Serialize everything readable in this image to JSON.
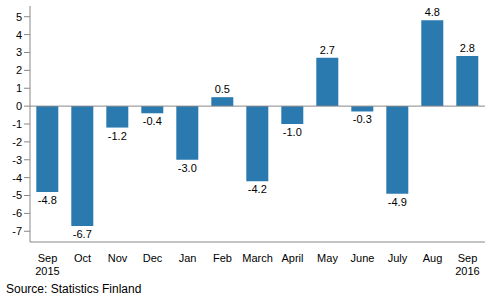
{
  "chart_data": {
    "type": "bar",
    "source": "Source: Statistics Finland",
    "categories": [
      "Sep 2015",
      "Oct",
      "Nov",
      "Dec",
      "Jan",
      "Feb",
      "March",
      "April",
      "May",
      "June",
      "July",
      "Aug",
      "Sep 2016"
    ],
    "values": [
      -4.8,
      -6.7,
      -1.2,
      -0.4,
      -3.0,
      0.5,
      -4.2,
      -1.0,
      2.7,
      -0.3,
      -4.9,
      4.8,
      2.8
    ],
    "value_labels": [
      "-4.8",
      "-6.7",
      "-1.2",
      "-0.4",
      "-3.0",
      "0.5",
      "-4.2",
      "-1.0",
      "2.7",
      "-0.3",
      "-4.9",
      "4.8",
      "2.8"
    ],
    "color": "#2a7ab0",
    "ylim": [
      -7.6,
      5.6
    ],
    "yticks": [
      -7,
      -6,
      -5,
      -4,
      -3,
      -2,
      -1,
      0,
      1,
      2,
      3,
      4,
      5
    ],
    "grid": false,
    "data_labels": true
  }
}
